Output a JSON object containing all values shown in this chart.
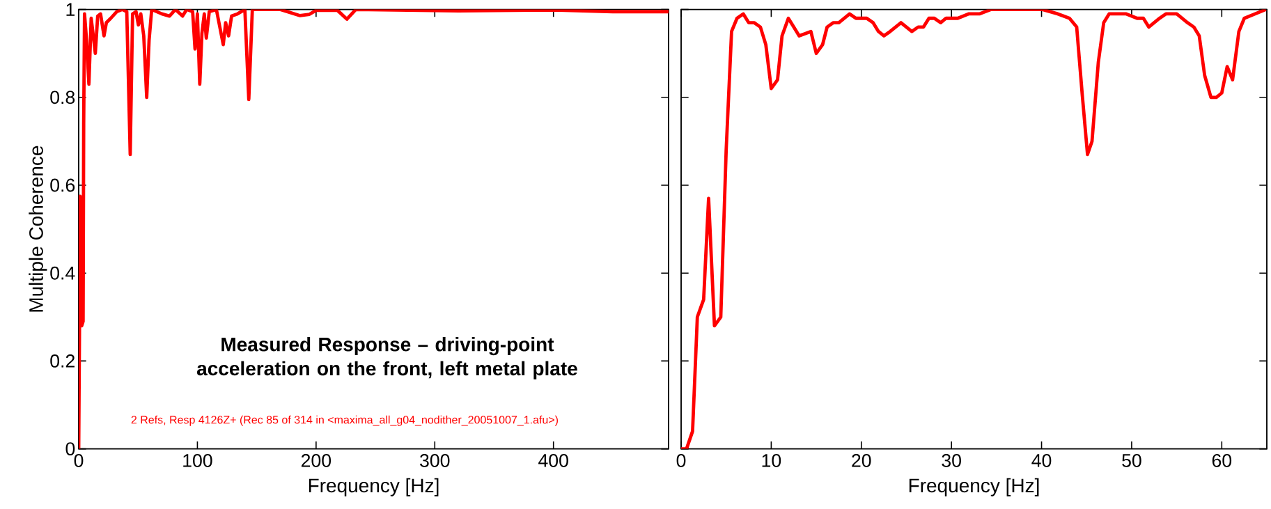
{
  "chart_data": [
    {
      "type": "line",
      "xlabel": "Frequency [Hz]",
      "ylabel": "Multiple Coherence",
      "xlim": [
        0,
        497
      ],
      "ylim": [
        0,
        1
      ],
      "xticks": [
        0,
        100,
        200,
        300,
        400
      ],
      "yticks": [
        0,
        0.2,
        0.4,
        0.6,
        0.8,
        1
      ],
      "annotations": [
        "Measured Response – driving-point acceleration on the front, left metal plate",
        "2 Refs, Resp 4126Z+ (Rec 85 of 314 in <maxima_all_g04_nodither_20051007_1.afu>)"
      ],
      "x": [
        0,
        0.7,
        1.2,
        2.5,
        3.7,
        4.2,
        4.9,
        6.6,
        8.6,
        10.5,
        12.3,
        14,
        16,
        18.4,
        21.3,
        23.3,
        27,
        32,
        36.8,
        40.5,
        43.4,
        45.4,
        48.3,
        50.3,
        52.3,
        54.8,
        57.3,
        59.3,
        61.5,
        70,
        76.5,
        81.5,
        87.5,
        91,
        96,
        98,
        100,
        102,
        103.8,
        105.8,
        107.5,
        110,
        116,
        121.8,
        123.8,
        126.3,
        128.8,
        133.8,
        140,
        143.3,
        146.3,
        170,
        186.5,
        194.4,
        200,
        218,
        226,
        233.5,
        320,
        400,
        450,
        497
      ],
      "series": [
        {
          "color": "#ff0000",
          "values": [
            0,
            0.29,
            0.575,
            0.28,
            0.29,
            0.74,
            0.99,
            0.93,
            0.83,
            0.98,
            0.94,
            0.9,
            0.985,
            0.99,
            0.94,
            0.97,
            0.98,
            0.995,
            1.0,
            0.995,
            0.67,
            0.99,
            0.995,
            0.965,
            0.99,
            0.94,
            0.8,
            0.93,
            1.0,
            0.99,
            0.985,
            1.0,
            0.985,
            1.0,
            0.995,
            0.91,
            0.99,
            0.83,
            0.945,
            0.99,
            0.935,
            0.995,
            1.0,
            0.92,
            0.97,
            0.94,
            0.985,
            0.99,
            1.0,
            0.795,
            1.0,
            1.0,
            0.986,
            0.989,
            0.998,
            0.998,
            0.978,
            1.0,
            0.997,
            0.999,
            0.995,
            0.995
          ]
        }
      ]
    },
    {
      "type": "line",
      "xlabel": "Frequency [Hz]",
      "xlim": [
        0,
        65
      ],
      "ylim": [
        0,
        1
      ],
      "xticks": [
        0,
        10,
        20,
        30,
        40,
        50,
        60
      ],
      "yticks": [
        0,
        0.2,
        0.4,
        0.6,
        0.8,
        1
      ],
      "tick_labels": "x",
      "x": [
        0,
        0.6,
        1.27,
        1.8,
        2.5,
        3.05,
        3.7,
        4.4,
        5.0,
        5.6,
        6.2,
        6.9,
        7.5,
        8.1,
        8.8,
        9.4,
        10.0,
        10.7,
        11.2,
        11.9,
        12.5,
        13.1,
        14.4,
        15.0,
        15.7,
        16.2,
        16.9,
        17.5,
        18.1,
        18.7,
        19.4,
        20.6,
        21.3,
        21.9,
        22.5,
        23.2,
        23.8,
        24.4,
        25.0,
        25.6,
        26.3,
        26.9,
        27.5,
        28.1,
        28.8,
        29.4,
        30.0,
        30.7,
        31.9,
        33.1,
        34.4,
        36.7,
        38.4,
        40.1,
        41.8,
        43.1,
        43.9,
        44.5,
        45.1,
        45.6,
        46.3,
        46.9,
        47.5,
        48.2,
        49.4,
        50.6,
        51.3,
        51.9,
        52.5,
        53.1,
        53.8,
        55.0,
        55.6,
        56.2,
        56.9,
        57.5,
        58.1,
        58.8,
        59.4,
        60.0,
        60.6,
        61.2,
        61.9,
        62.5,
        63.7,
        64.9
      ],
      "series": [
        {
          "color": "#ff0000",
          "values": [
            0,
            0,
            0.04,
            0.3,
            0.34,
            0.57,
            0.28,
            0.3,
            0.68,
            0.95,
            0.98,
            0.99,
            0.97,
            0.97,
            0.96,
            0.92,
            0.82,
            0.84,
            0.94,
            0.98,
            0.96,
            0.94,
            0.95,
            0.9,
            0.92,
            0.96,
            0.97,
            0.97,
            0.98,
            0.99,
            0.98,
            0.98,
            0.97,
            0.95,
            0.94,
            0.95,
            0.96,
            0.97,
            0.96,
            0.95,
            0.96,
            0.96,
            0.98,
            0.98,
            0.97,
            0.98,
            0.98,
            0.98,
            0.99,
            0.99,
            1.0,
            1.0,
            1.0,
            1.0,
            0.99,
            0.98,
            0.96,
            0.81,
            0.67,
            0.7,
            0.88,
            0.97,
            0.99,
            0.99,
            0.99,
            0.98,
            0.98,
            0.96,
            0.97,
            0.98,
            0.99,
            0.99,
            0.98,
            0.97,
            0.96,
            0.94,
            0.85,
            0.8,
            0.8,
            0.81,
            0.87,
            0.84,
            0.95,
            0.98,
            0.99,
            1.0
          ]
        }
      ]
    }
  ]
}
